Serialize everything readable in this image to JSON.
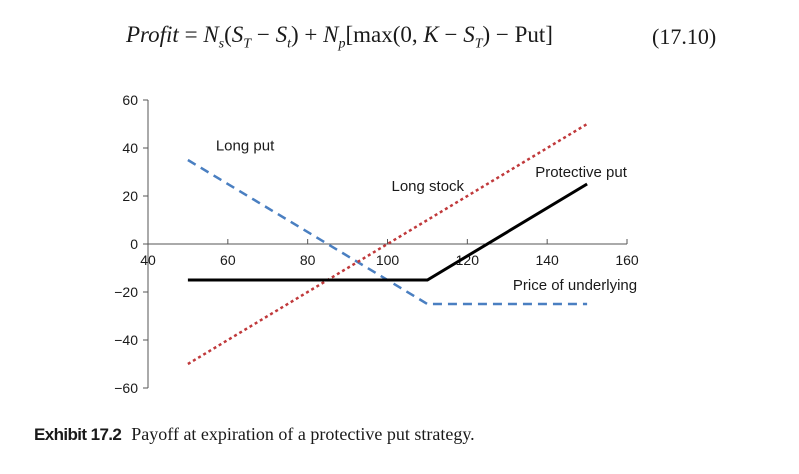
{
  "equation": {
    "text": "Profit = Nₛ(S_T − Sₜ) + Nₚ[max(0, K − S_T) − Put]",
    "number": "(17.10)"
  },
  "chart_data": {
    "type": "line",
    "title": "",
    "xlabel": "Price of underlying",
    "ylabel": "",
    "xlim": [
      40,
      160
    ],
    "ylim": [
      -60,
      60
    ],
    "x_ticks": [
      "40",
      "60",
      "80",
      "100",
      "120",
      "140",
      "160"
    ],
    "y_ticks": [
      "60",
      "40",
      "20",
      "0",
      "−20",
      "−40",
      "−60"
    ],
    "grid": false,
    "series": [
      {
        "name": "Long put",
        "style": "dashed",
        "color": "#4a7fc1",
        "x": [
          50,
          110,
          150
        ],
        "y": [
          35,
          -25,
          -25
        ]
      },
      {
        "name": "Long stock",
        "style": "dotted",
        "color": "#c0393b",
        "x": [
          50,
          150
        ],
        "y": [
          -50,
          50
        ]
      },
      {
        "name": "Protective put",
        "style": "solid",
        "color": "#000000",
        "x": [
          50,
          110,
          150
        ],
        "y": [
          -15,
          -15,
          25
        ]
      }
    ]
  },
  "caption": {
    "label": "Exhibit 17.2",
    "text": "Payoff at expiration of a protective put strategy."
  }
}
